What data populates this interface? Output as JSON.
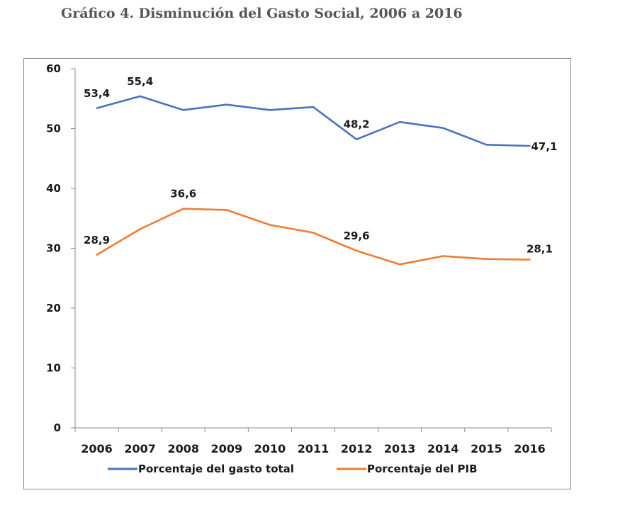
{
  "title": "Gráfico 4. Disminución del Gasto Social, 2006 a 2016",
  "colors": {
    "series_1": "#4a72c0",
    "series_2": "#ee7d31"
  },
  "chart_data": {
    "type": "line",
    "title": "Gráfico 4. Disminución del Gasto Social, 2006 a 2016",
    "xlabel": "",
    "ylabel": "",
    "x": [
      "2006",
      "2007",
      "2008",
      "2009",
      "2010",
      "2011",
      "2012",
      "2013",
      "2014",
      "2015",
      "2016"
    ],
    "ylim": [
      0,
      60
    ],
    "yticks": [
      0,
      10,
      20,
      30,
      40,
      50,
      60
    ],
    "grid": false,
    "legend": "bottom",
    "series": [
      {
        "name": "Porcentaje del gasto total",
        "color": "#4a72c0",
        "values": [
          53.4,
          55.4,
          53.1,
          54.0,
          53.1,
          53.6,
          48.2,
          51.1,
          50.1,
          47.3,
          47.1
        ],
        "labels": [
          {
            "index": 0,
            "text": "53,4"
          },
          {
            "index": 1,
            "text": "55,4"
          },
          {
            "index": 6,
            "text": "48,2"
          },
          {
            "index": 10,
            "text": "47,1"
          }
        ]
      },
      {
        "name": "Porcentaje del PIB",
        "color": "#ee7d31",
        "values": [
          28.9,
          33.2,
          36.6,
          36.4,
          33.9,
          32.6,
          29.6,
          27.3,
          28.7,
          28.2,
          28.1
        ],
        "labels": [
          {
            "index": 0,
            "text": "28,9"
          },
          {
            "index": 2,
            "text": "36,6"
          },
          {
            "index": 6,
            "text": "29,6"
          },
          {
            "index": 10,
            "text": "28,1"
          }
        ]
      }
    ]
  }
}
